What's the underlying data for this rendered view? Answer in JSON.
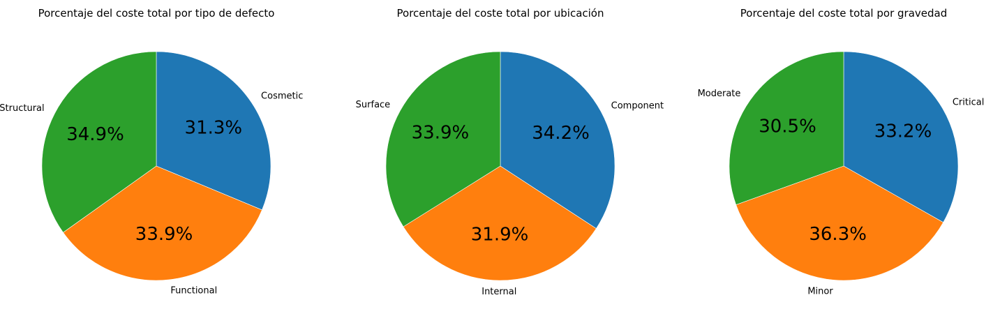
{
  "chart_data": [
    {
      "type": "pie",
      "title": "Porcentaje del coste total por tipo de defecto",
      "categories": [
        "Cosmetic",
        "Functional",
        "Structural"
      ],
      "values": [
        31.3,
        33.9,
        34.9
      ],
      "labels": [
        "31.3%",
        "33.9%",
        "34.9%"
      ],
      "colors": [
        "#1f77b4",
        "#ff7f0e",
        "#2ca02c"
      ]
    },
    {
      "type": "pie",
      "title": "Porcentaje del coste total por ubicación",
      "categories": [
        "Component",
        "Internal",
        "Surface"
      ],
      "values": [
        34.2,
        31.9,
        33.9
      ],
      "labels": [
        "34.2%",
        "31.9%",
        "33.9%"
      ],
      "colors": [
        "#1f77b4",
        "#ff7f0e",
        "#2ca02c"
      ]
    },
    {
      "type": "pie",
      "title": "Porcentaje del coste total por gravedad",
      "categories": [
        "Critical",
        "Minor",
        "Moderate"
      ],
      "values": [
        33.2,
        36.3,
        30.5
      ],
      "labels": [
        "33.2%",
        "36.3%",
        "30.5%"
      ],
      "colors": [
        "#1f77b4",
        "#ff7f0e",
        "#2ca02c"
      ]
    }
  ]
}
